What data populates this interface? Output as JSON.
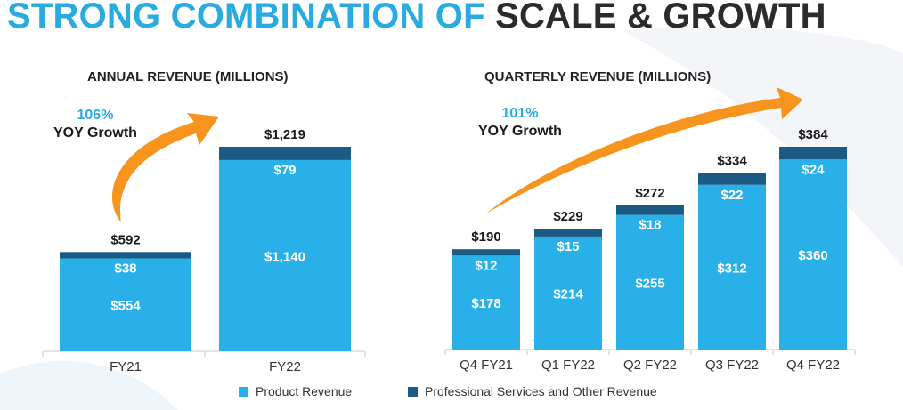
{
  "header": {
    "title_part1": "STRONG COMBINATION OF",
    "title_part2": "SCALE & GROWTH"
  },
  "colors": {
    "title_accent": "#29abe2",
    "product": "#29b0e8",
    "services": "#1a5a85",
    "arrow": "#f7941d"
  },
  "legend": {
    "product_label": "Product Revenue",
    "services_label": "Professional Services and Other Revenue"
  },
  "annual_growth": {
    "percent": "106%",
    "label": "YOY Growth"
  },
  "quarterly_growth": {
    "percent": "101%",
    "label": "YOY Growth"
  },
  "chart_data": [
    {
      "type": "bar",
      "stacked": true,
      "title": "ANNUAL REVENUE (MILLIONS)",
      "categories": [
        "FY21",
        "FY22"
      ],
      "series": [
        {
          "name": "Product Revenue",
          "values": [
            554,
            1140
          ],
          "labels": [
            "$554",
            "$1,140"
          ]
        },
        {
          "name": "Professional Services and Other Revenue",
          "values": [
            38,
            79
          ],
          "labels": [
            "$38",
            "$79"
          ]
        }
      ],
      "totals": [
        592,
        1219
      ],
      "total_labels": [
        "$592",
        "$1,219"
      ],
      "ylim": [
        0,
        1219
      ],
      "grid": false
    },
    {
      "type": "bar",
      "stacked": true,
      "title": "QUARTERLY REVENUE (MILLIONS)",
      "categories": [
        "Q4 FY21",
        "Q1 FY22",
        "Q2 FY22",
        "Q3 FY22",
        "Q4 FY22"
      ],
      "series": [
        {
          "name": "Product Revenue",
          "values": [
            178,
            214,
            255,
            312,
            360
          ],
          "labels": [
            "$178",
            "$214",
            "$255",
            "$312",
            "$360"
          ]
        },
        {
          "name": "Professional Services and Other Revenue",
          "values": [
            12,
            15,
            18,
            22,
            24
          ],
          "labels": [
            "$12",
            "$15",
            "$18",
            "$22",
            "$24"
          ]
        }
      ],
      "totals": [
        190,
        229,
        272,
        334,
        384
      ],
      "total_labels": [
        "$190",
        "$229",
        "$272",
        "$334",
        "$384"
      ],
      "ylim": [
        0,
        384
      ],
      "grid": false
    }
  ]
}
